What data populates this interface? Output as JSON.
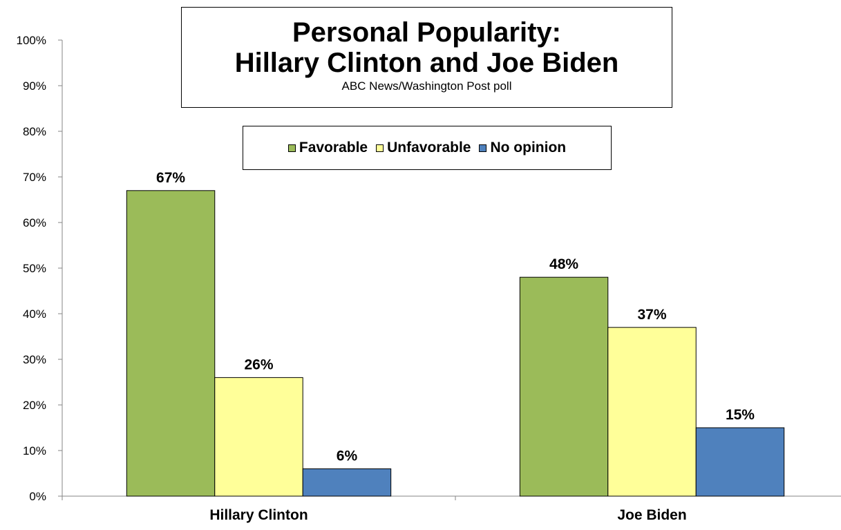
{
  "chart_data": {
    "type": "bar",
    "title": "Personal Popularity:",
    "title_line2": "Hillary Clinton and Joe Biden",
    "subtitle": "ABC News/Washington Post poll",
    "categories": [
      "Hillary Clinton",
      "Joe Biden"
    ],
    "series": [
      {
        "name": "Favorable",
        "color": "#9bbb59",
        "values": [
          67,
          48
        ],
        "labels": [
          "67%",
          "48%"
        ]
      },
      {
        "name": "Unfavorable",
        "color": "#ffff99",
        "values": [
          26,
          37
        ],
        "labels": [
          "26%",
          "37%"
        ]
      },
      {
        "name": "No opinion",
        "color": "#4f81bd",
        "values": [
          6,
          15
        ],
        "labels": [
          "6%",
          "15%"
        ]
      }
    ],
    "ylim": [
      0,
      100
    ],
    "yticks": [
      "0%",
      "10%",
      "20%",
      "30%",
      "40%",
      "50%",
      "60%",
      "70%",
      "80%",
      "90%",
      "100%"
    ],
    "grid": false,
    "legend_position": "top-center"
  }
}
